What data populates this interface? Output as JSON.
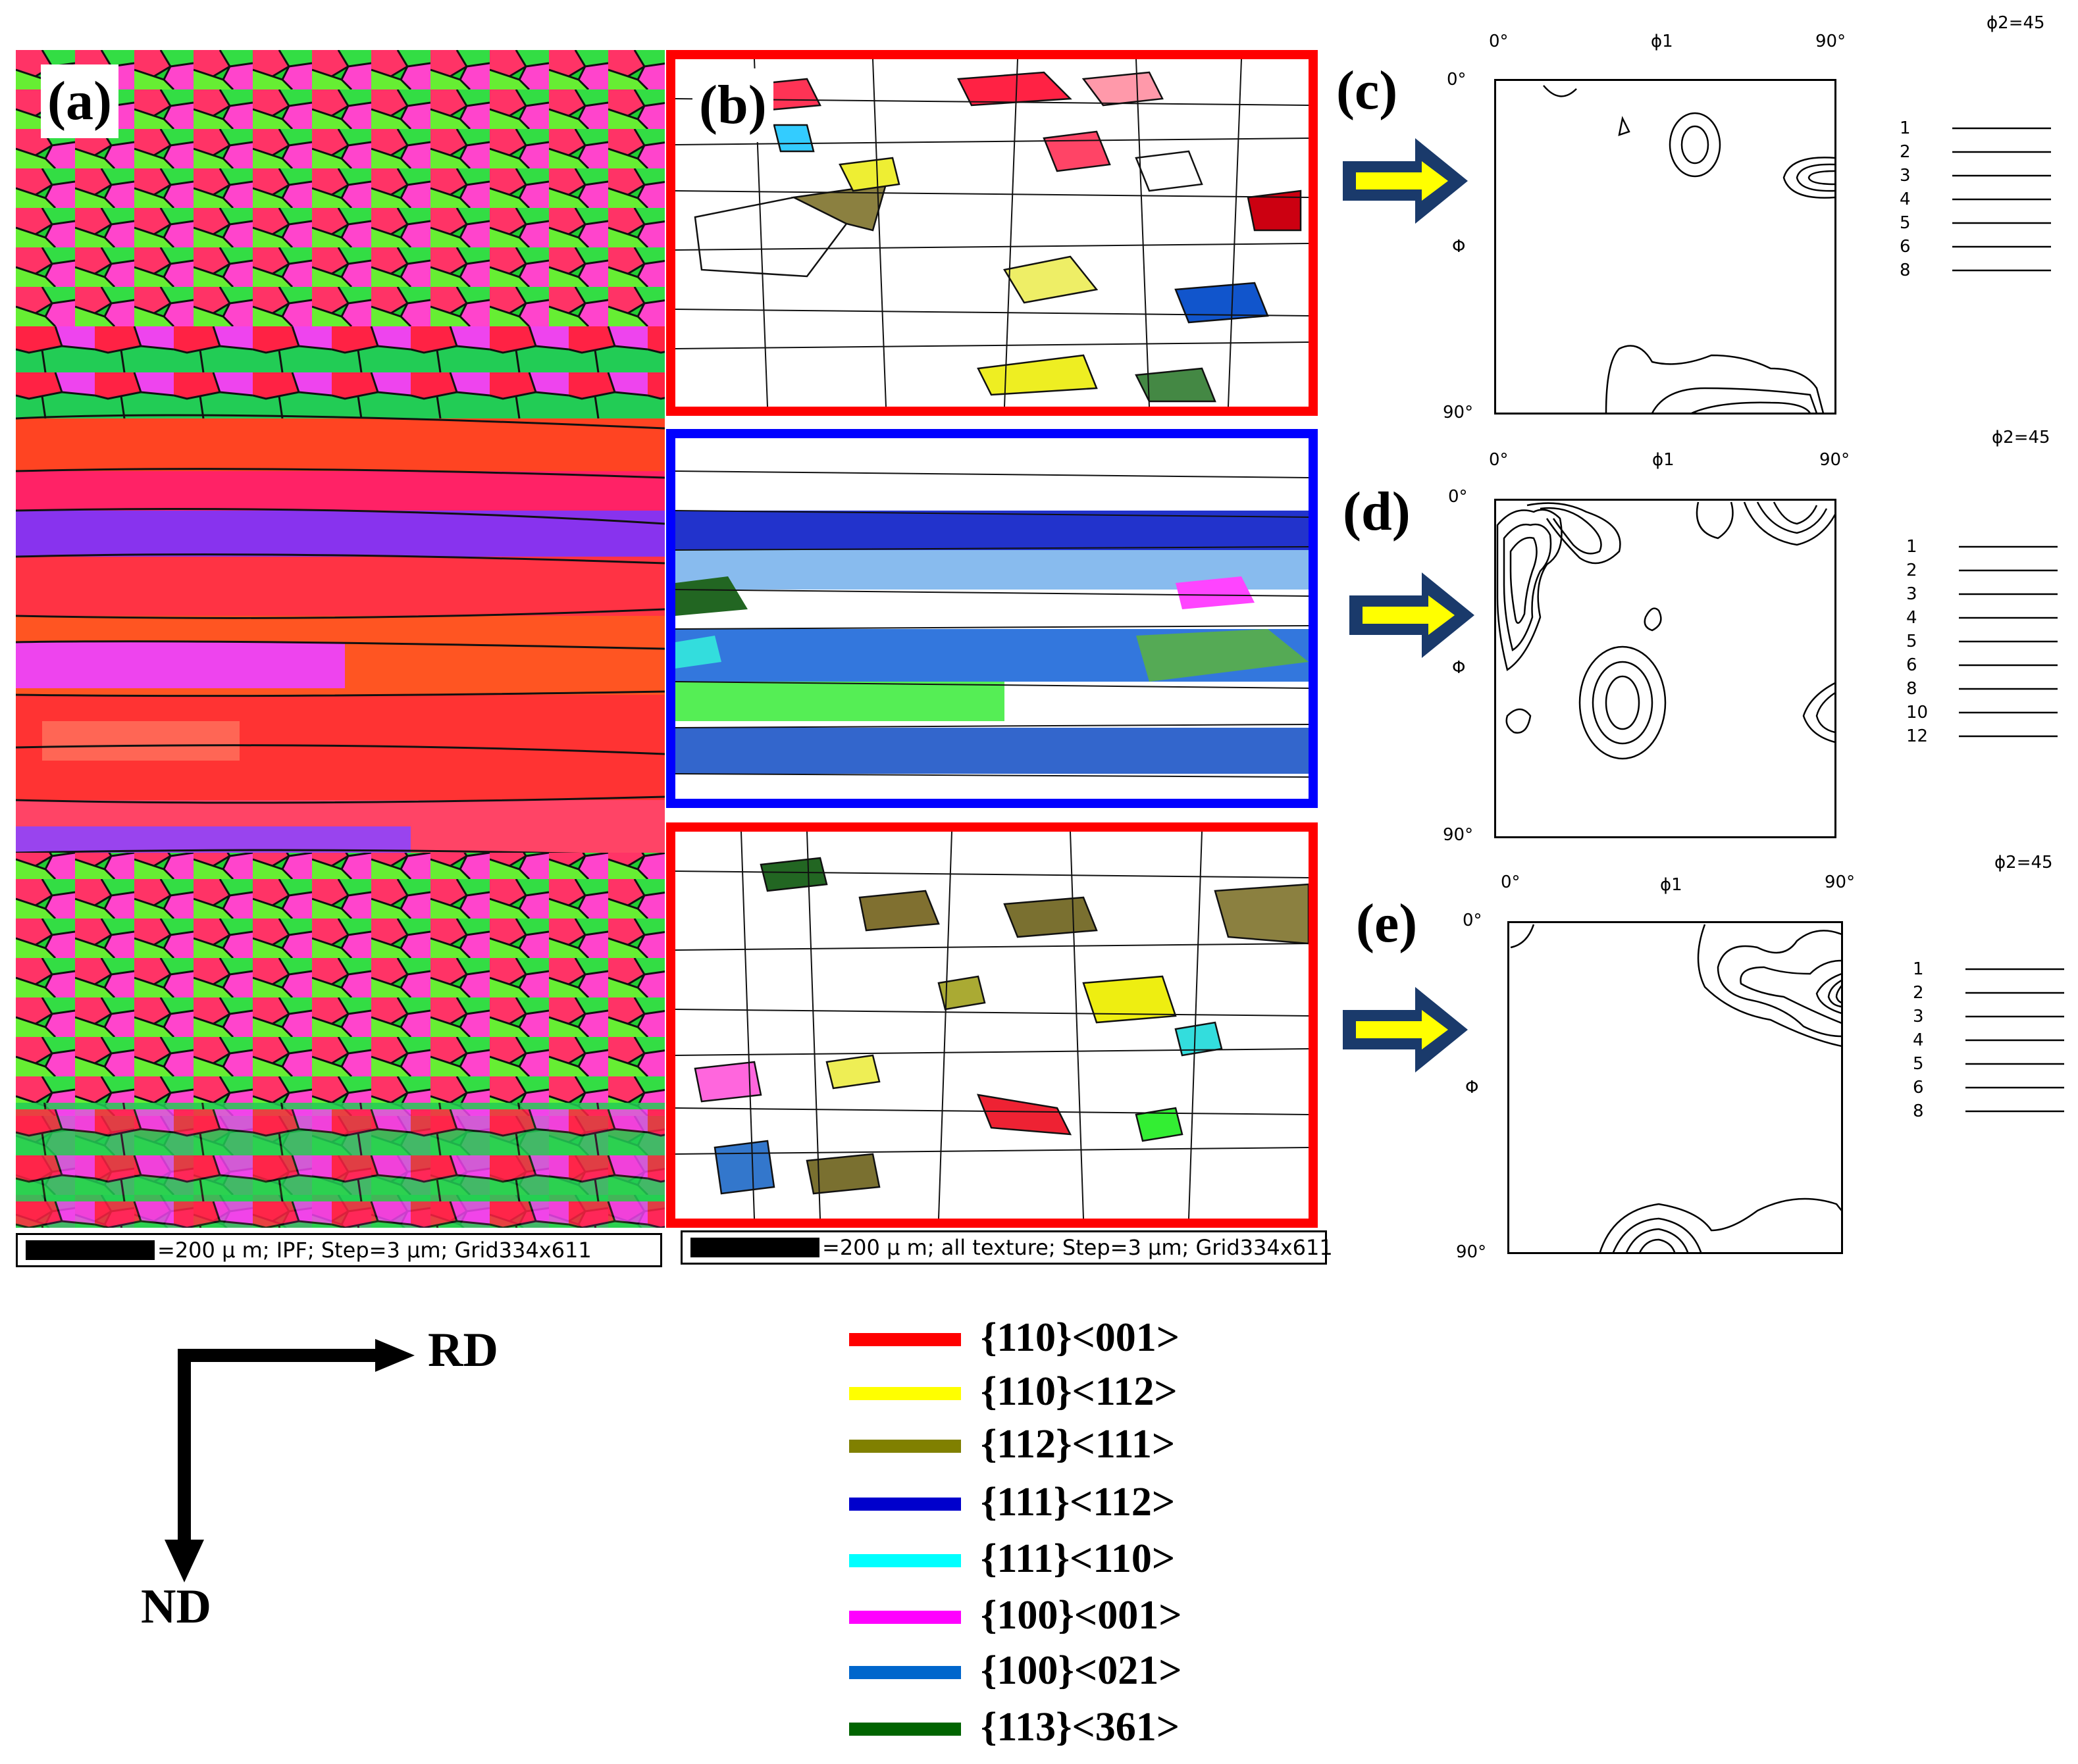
{
  "panels": {
    "a": {
      "label": "(a)",
      "scale_text": "=200 µ m; IPF; Step=3 µm; Grid334x611"
    },
    "b": {
      "label": "(b)",
      "scale_text": "=200 µ m; all texture; Step=3 µm; Grid334x611"
    },
    "c": {
      "label": "(c)"
    },
    "d": {
      "label": "(d)"
    },
    "e": {
      "label": "(e)"
    }
  },
  "odf": {
    "phi2_label": "ϕ2=45",
    "phi1_label": "ϕ1",
    "Phi_label": "Φ",
    "x_start": "0°",
    "x_end": "90°",
    "y_start": "0°",
    "y_end": "90°",
    "c_levels": [
      "1",
      "2",
      "3",
      "4",
      "5",
      "6",
      "8"
    ],
    "d_levels": [
      "1",
      "2",
      "3",
      "4",
      "5",
      "6",
      "8",
      "10",
      "12"
    ],
    "e_levels": [
      "1",
      "2",
      "3",
      "4",
      "5",
      "6",
      "8"
    ]
  },
  "directions": {
    "rd": "RD",
    "nd": "ND"
  },
  "legend": [
    {
      "label": "{110}<001>",
      "color": "#ff0000"
    },
    {
      "label": "{110}<112>",
      "color": "#ffff00"
    },
    {
      "label": "{112}<111>",
      "color": "#808000"
    },
    {
      "label": "{111}<112>",
      "color": "#0000cc"
    },
    {
      "label": "{111}<110>",
      "color": "#00ffff"
    },
    {
      "label": "{100}<001>",
      "color": "#ff00ff"
    },
    {
      "label": "{100}<021>",
      "color": "#0066cc"
    },
    {
      "label": "{113}<361>",
      "color": "#006400"
    }
  ],
  "colors": {
    "frame_red": "#ff0000",
    "frame_blue": "#0000ff",
    "arrow_fill": "#1a3a6b",
    "arrow_inner": "#ffff00"
  }
}
